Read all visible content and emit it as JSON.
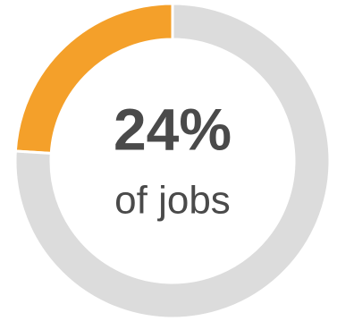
{
  "chart_data": {
    "type": "donut",
    "categories": [
      null,
      null
    ],
    "values": [
      24,
      76
    ],
    "value_labels": [
      "24%",
      null
    ],
    "colors": [
      "#f4a02a",
      "#dcdcdc"
    ],
    "subtitle": "of jobs"
  }
}
